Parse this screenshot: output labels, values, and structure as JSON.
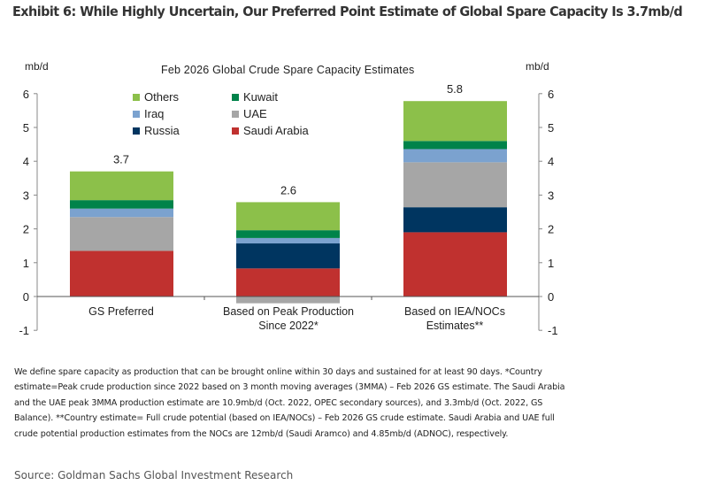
{
  "exhibit_title": "Exhibit 6: While Highly Uncertain, Our Preferred Point Estimate of Global Spare Capacity Is 3.7mb/d",
  "footnote": "We define spare capacity as production that can be brought online within 30 days and sustained for at least 90 days. *Country estimate=Peak crude production since 2022 based on 3 month moving averages (3MMA) – Feb 2026 GS estimate. The Saudi Arabia and the UAE peak 3MMA production estimate are 10.9mb/d (Oct. 2022, OPEC secondary sources), and 3.3mb/d (Oct. 2022, GS Balance). **Country estimate= Full crude potential (based on IEA/NOCs) – Feb 2026 GS crude estimate. Saudi Arabia and UAE full crude potential production estimates from the NOCs are 12mb/d (Saudi Aramco) and 4.85mb/d (ADNOC), respectively.",
  "source": "Source: Goldman Sachs Global Investment Research",
  "chart_data": {
    "type": "bar",
    "stacked": true,
    "title": "Feb 2026 Global Crude Spare Capacity Estimates",
    "ylabel_left": "mb/d",
    "ylabel_right": "mb/d",
    "xlabel": "",
    "ylim": [
      -1,
      6
    ],
    "yticks": [
      -1,
      0,
      1,
      2,
      3,
      4,
      5,
      6
    ],
    "grid": false,
    "legend_position": "top-left",
    "categories": [
      [
        "GS Preferred"
      ],
      [
        "Based on Peak Production",
        "Since 2022*"
      ],
      [
        "Based on IEA/NOCs",
        "Estimates**"
      ]
    ],
    "totals": [
      "3.7",
      "2.6",
      "5.8"
    ],
    "series": [
      {
        "name": "Saudi Arabia",
        "color": "#C0312F",
        "values": [
          1.35,
          0.83,
          1.9
        ]
      },
      {
        "name": "Russia",
        "color": "#003560",
        "values": [
          0.0,
          0.74,
          0.74
        ]
      },
      {
        "name": "UAE",
        "color": "#A6A6A6",
        "values": [
          1.0,
          -0.2,
          1.33
        ]
      },
      {
        "name": "Iraq",
        "color": "#7BA2CF",
        "values": [
          0.25,
          0.16,
          0.39
        ]
      },
      {
        "name": "Kuwait",
        "color": "#00834A",
        "values": [
          0.25,
          0.23,
          0.24
        ]
      },
      {
        "name": "Others",
        "color": "#8CC04A",
        "values": [
          0.85,
          0.83,
          1.18
        ]
      }
    ],
    "legend_order": [
      "Others",
      "Kuwait",
      "Iraq",
      "UAE",
      "Russia",
      "Saudi Arabia"
    ]
  }
}
